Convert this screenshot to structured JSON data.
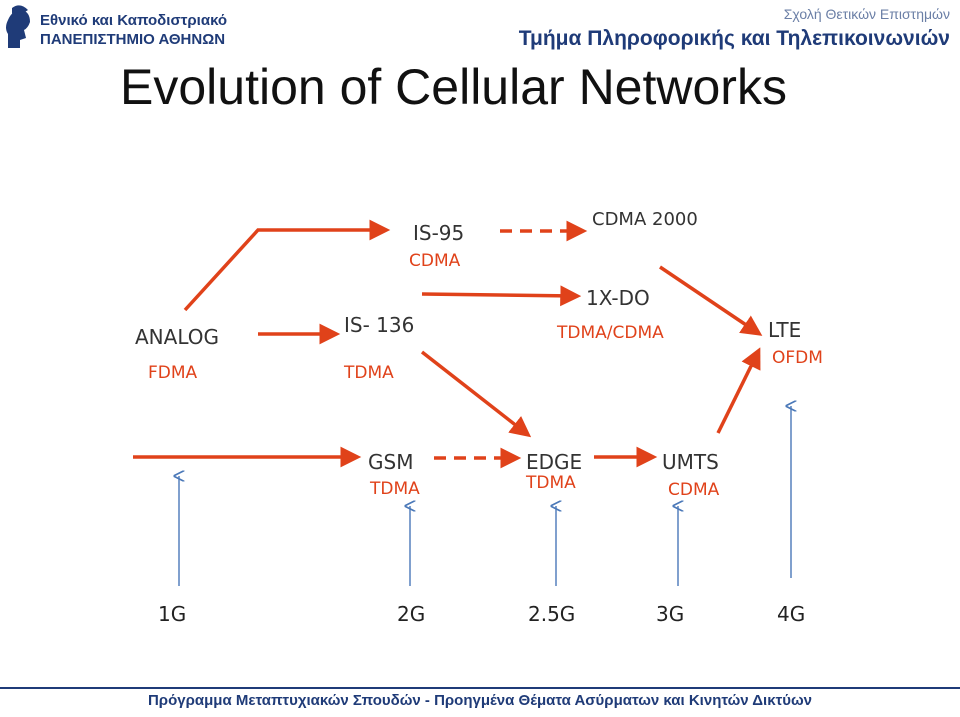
{
  "header": {
    "university_line1": "Εθνικό και Καποδιστριακό",
    "university_line2": "ΠΑΝΕΠΙΣΤΗΜΙΟ ΑΘΗΝΩΝ",
    "school": "Σχολή Θετικών Επιστημών",
    "department": "Τμήμα Πληροφορικής και Τηλεπικοινωνιών",
    "logo_icon": "athena-head-icon"
  },
  "slide": {
    "title": "Evolution of Cellular Networks"
  },
  "diagram": {
    "nodes": {
      "is95": {
        "tech": "IS-95",
        "access": "CDMA"
      },
      "cdma2000": {
        "tech": "CDMA 2000"
      },
      "onexdo": {
        "tech": "1X-DO",
        "access": "TDMA/CDMA"
      },
      "analog": {
        "tech": "ANALOG",
        "access": "FDMA"
      },
      "is136": {
        "tech": "IS- 136",
        "access": "TDMA"
      },
      "lte": {
        "tech": "LTE",
        "access": "OFDM"
      },
      "gsm": {
        "tech": "GSM",
        "access": "TDMA"
      },
      "edge": {
        "tech": "EDGE",
        "access": "TDMA"
      },
      "umts": {
        "tech": "UMTS",
        "access": "CDMA"
      }
    },
    "generations": [
      "1G",
      "2G",
      "2.5G",
      "3G",
      "4G"
    ],
    "colors": {
      "arrow": "#e0421a",
      "generation_arrow": "#4a78b8",
      "access_text": "#e0421a"
    }
  },
  "footer": {
    "text": "Πρόγραμμα Μεταπτυχιακών Σπουδών - Προηγμένα Θέματα Ασύρματων και Κινητών Δικτύων"
  }
}
